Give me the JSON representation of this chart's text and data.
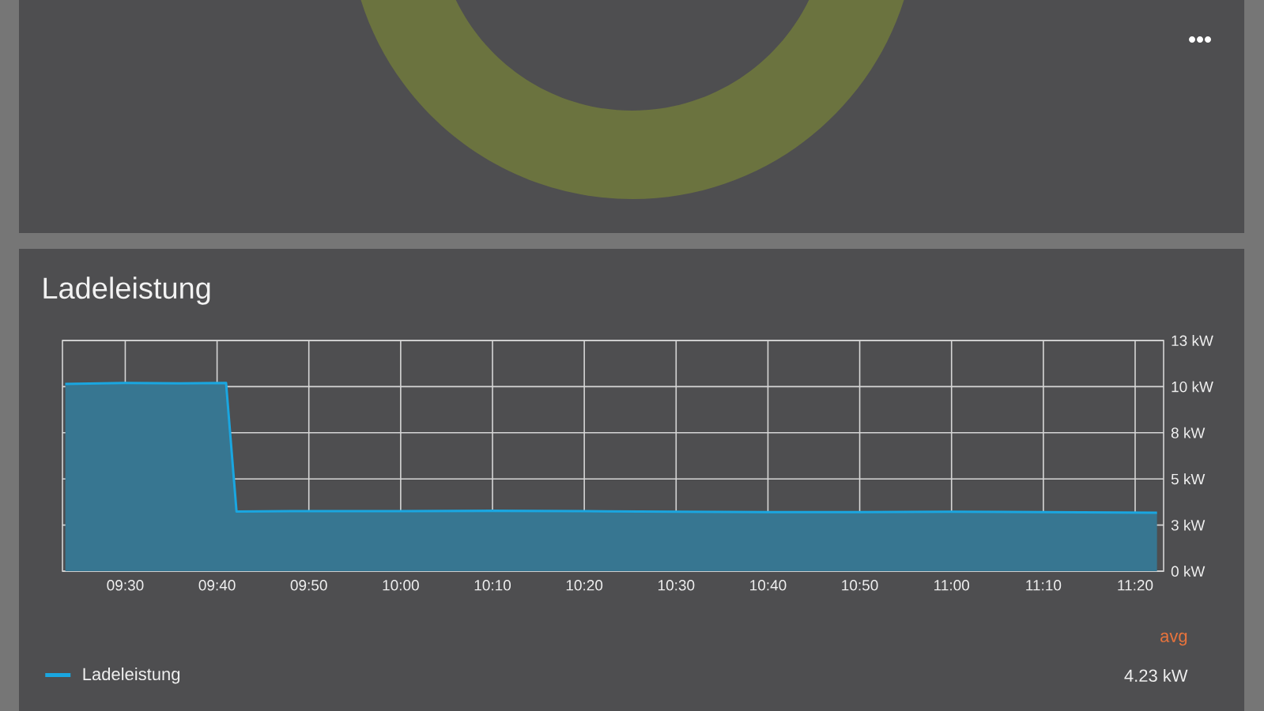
{
  "chart_data": {
    "type": "area",
    "title": "Ladeleistung",
    "x": [
      9.391,
      9.5,
      9.6,
      9.683,
      9.702,
      9.8,
      10.0,
      10.167,
      10.333,
      10.5,
      10.667,
      10.833,
      11.0,
      11.167,
      11.373
    ],
    "series": [
      {
        "name": "Ladeleistung",
        "color": "#1aa6e0",
        "values": [
          10.15,
          10.2,
          10.18,
          10.2,
          3.23,
          3.25,
          3.25,
          3.27,
          3.25,
          3.22,
          3.2,
          3.2,
          3.22,
          3.2,
          3.17
        ]
      }
    ],
    "xlim": [
      9.386,
      11.385
    ],
    "xticks": [
      {
        "value": 9.5,
        "label": "09:30"
      },
      {
        "value": 9.6667,
        "label": "09:40"
      },
      {
        "value": 9.8333,
        "label": "09:50"
      },
      {
        "value": 10.0,
        "label": "10:00"
      },
      {
        "value": 10.1667,
        "label": "10:10"
      },
      {
        "value": 10.3333,
        "label": "10:20"
      },
      {
        "value": 10.5,
        "label": "10:30"
      },
      {
        "value": 10.6667,
        "label": "10:40"
      },
      {
        "value": 10.8333,
        "label": "10:50"
      },
      {
        "value": 11.0,
        "label": "11:00"
      },
      {
        "value": 11.1667,
        "label": "11:10"
      },
      {
        "value": 11.3333,
        "label": "11:20"
      }
    ],
    "ylim": [
      0,
      12.5
    ],
    "yticks": [
      {
        "value": 0,
        "label": "0 kW"
      },
      {
        "value": 2.5,
        "label": "3 kW"
      },
      {
        "value": 5,
        "label": "5 kW"
      },
      {
        "value": 7.5,
        "label": "8 kW"
      },
      {
        "value": 10,
        "label": "10 kW"
      },
      {
        "value": 12.5,
        "label": "13 kW"
      }
    ],
    "grid": true,
    "legend": "bottom",
    "annotations": [
      "avg",
      "4.23 kW"
    ]
  }
}
